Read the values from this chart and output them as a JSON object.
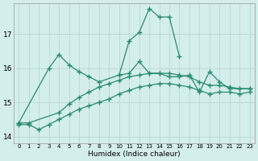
{
  "xlabel": "Humidex (Indice chaleur)",
  "x": [
    0,
    1,
    2,
    3,
    4,
    5,
    6,
    7,
    8,
    9,
    10,
    11,
    12,
    13,
    14,
    15,
    16,
    17,
    18,
    19,
    20,
    21,
    22,
    23
  ],
  "line1": [
    14.4,
    null,
    null,
    16.0,
    16.4,
    16.1,
    15.9,
    15.75,
    15.6,
    null,
    15.8,
    16.8,
    17.05,
    17.75,
    17.5,
    17.5,
    16.35,
    null,
    null,
    null,
    null,
    null,
    null,
    null
  ],
  "line2": [
    null,
    null,
    null,
    null,
    null,
    null,
    null,
    null,
    null,
    null,
    15.8,
    15.85,
    16.2,
    15.85,
    15.85,
    15.75,
    15.75,
    15.8,
    15.3,
    15.9,
    15.6,
    15.4,
    15.4,
    15.4
  ],
  "line3": [
    14.4,
    14.4,
    null,
    null,
    14.7,
    14.95,
    15.15,
    15.3,
    15.45,
    15.55,
    15.65,
    15.75,
    15.8,
    15.85,
    15.85,
    15.85,
    15.8,
    15.75,
    15.6,
    15.5,
    15.5,
    15.45,
    15.4,
    15.4
  ],
  "line4": [
    14.35,
    14.35,
    14.2,
    14.35,
    14.5,
    14.65,
    14.8,
    14.9,
    15.0,
    15.1,
    15.25,
    15.35,
    15.45,
    15.5,
    15.55,
    15.55,
    15.5,
    15.45,
    15.35,
    15.25,
    15.3,
    15.3,
    15.25,
    15.3
  ],
  "line_color": "#2a8a74",
  "bg_color": "#d4eeec",
  "grid_color": "#b8d8d4",
  "ylim": [
    13.8,
    17.9
  ],
  "yticks": [
    14,
    15,
    16,
    17
  ],
  "xlim": [
    -0.5,
    23.5
  ]
}
